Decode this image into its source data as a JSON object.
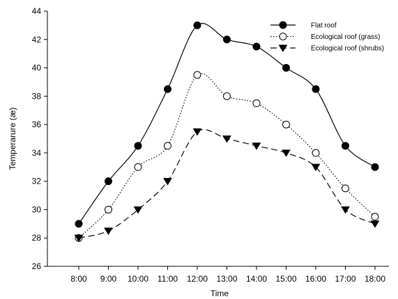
{
  "chart_data": {
    "type": "line",
    "title": "",
    "xlabel": "Time",
    "ylabel": "Temperarure (æ)",
    "categories": [
      "8:00",
      "9:00",
      "10:00",
      "11:00",
      "12:00",
      "13:00",
      "14:00",
      "15:00",
      "16:00",
      "17:00",
      "18:00"
    ],
    "ylim": [
      26,
      44
    ],
    "yticks": [
      "26",
      "28",
      "30",
      "32",
      "34",
      "36",
      "38",
      "40",
      "42",
      "44"
    ],
    "grid": false,
    "legend_position": "top-right",
    "series": [
      {
        "name": "Flat roof",
        "marker": "filled-circle",
        "line": "solid",
        "color": "#000000",
        "values": [
          29,
          32,
          34.5,
          38.5,
          43,
          42,
          41.5,
          40,
          38.5,
          34.5,
          33
        ]
      },
      {
        "name": "Ecological roof (grass)",
        "marker": "open-circle",
        "line": "dotted",
        "color": "#000000",
        "values": [
          28,
          30,
          33,
          34.5,
          39.5,
          38,
          37.5,
          36,
          34,
          31.5,
          29.5
        ]
      },
      {
        "name": "Ecological roof (shrubs)",
        "marker": "filled-triangle-down",
        "line": "dashed",
        "color": "#000000",
        "values": [
          28,
          28.5,
          30,
          32,
          35.5,
          35,
          34.5,
          34,
          33,
          30,
          29
        ]
      }
    ]
  }
}
